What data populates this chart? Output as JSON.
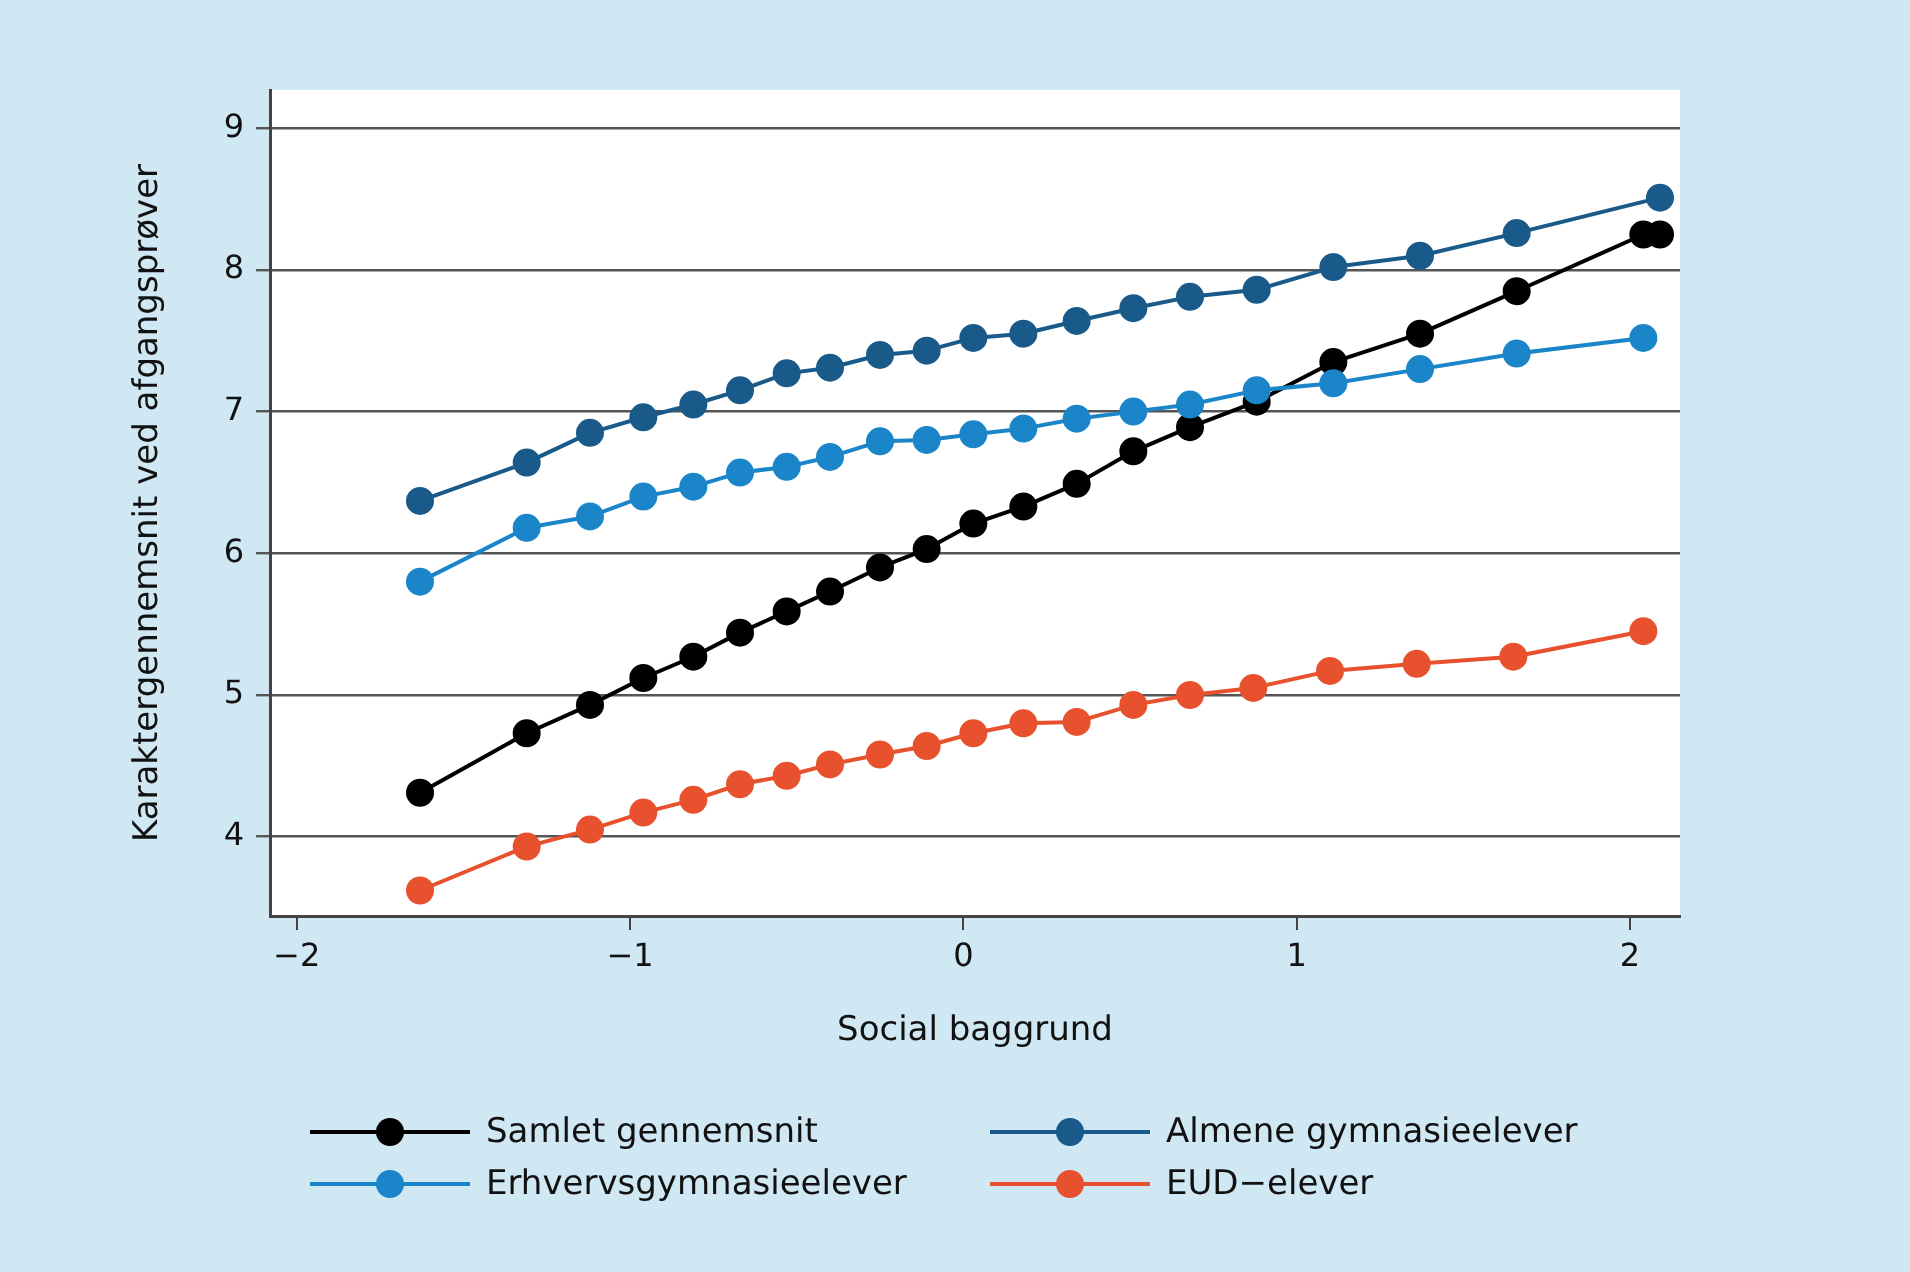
{
  "chart_data": {
    "type": "line",
    "xlabel": "Social baggrund",
    "ylabel": "Karaktergennemsnit ved afgangsprøver",
    "xlim": [
      -2.08,
      2.15
    ],
    "ylim": [
      3.44,
      9.27
    ],
    "xticks": [
      {
        "value": -2,
        "label": "−2"
      },
      {
        "value": -1,
        "label": "−1"
      },
      0,
      1,
      2
    ],
    "yticks": [
      4,
      5,
      6,
      7,
      8,
      9
    ],
    "grid": "y",
    "legend": "bottom",
    "marker": "circle",
    "line_style": "solid",
    "series": [
      {
        "name": "Samlet gennemsnit",
        "color": "#000000",
        "x": [
          -1.63,
          -1.31,
          -1.12,
          -0.96,
          -0.81,
          -0.67,
          -0.53,
          -0.4,
          -0.25,
          -0.11,
          0.03,
          0.18,
          0.34,
          0.51,
          0.68,
          0.88,
          1.11,
          1.37,
          1.66,
          2.04,
          2.09
        ],
        "values": [
          4.31,
          4.73,
          4.93,
          5.12,
          5.27,
          5.44,
          5.59,
          5.73,
          5.9,
          6.03,
          6.21,
          6.33,
          6.49,
          6.72,
          6.89,
          7.07,
          7.35,
          7.55,
          7.85,
          8.25,
          8.25
        ]
      },
      {
        "name": "Almene gymnasieelever",
        "color": "#1a5a8a",
        "x": [
          -1.63,
          -1.31,
          -1.12,
          -0.96,
          -0.81,
          -0.67,
          -0.53,
          -0.4,
          -0.25,
          -0.11,
          0.03,
          0.18,
          0.34,
          0.51,
          0.68,
          0.88,
          1.11,
          1.37,
          1.66,
          2.09
        ],
        "values": [
          6.37,
          6.64,
          6.85,
          6.96,
          7.05,
          7.15,
          7.27,
          7.31,
          7.4,
          7.43,
          7.52,
          7.55,
          7.64,
          7.73,
          7.81,
          7.86,
          8.02,
          8.1,
          8.26,
          8.51
        ]
      },
      {
        "name": "Erhvervsgymnasieelever",
        "color": "#1a85c8",
        "x": [
          -1.63,
          -1.31,
          -1.12,
          -0.96,
          -0.81,
          -0.67,
          -0.53,
          -0.4,
          -0.25,
          -0.11,
          0.03,
          0.18,
          0.34,
          0.51,
          0.68,
          0.88,
          1.11,
          1.37,
          1.66,
          2.04
        ],
        "values": [
          5.8,
          6.18,
          6.26,
          6.4,
          6.47,
          6.57,
          6.61,
          6.68,
          6.79,
          6.8,
          6.84,
          6.88,
          6.95,
          7.0,
          7.05,
          7.15,
          7.2,
          7.3,
          7.41,
          7.52
        ]
      },
      {
        "name": "EUD−elever",
        "color": "#e8512d",
        "x": [
          -1.63,
          -1.31,
          -1.12,
          -0.96,
          -0.81,
          -0.67,
          -0.53,
          -0.4,
          -0.25,
          -0.11,
          0.03,
          0.18,
          0.34,
          0.51,
          0.68,
          0.87,
          1.1,
          1.36,
          1.65,
          2.04
        ],
        "values": [
          3.62,
          3.93,
          4.05,
          4.17,
          4.26,
          4.37,
          4.43,
          4.51,
          4.58,
          4.64,
          4.73,
          4.8,
          4.81,
          4.93,
          5.0,
          5.05,
          5.17,
          5.22,
          5.27,
          5.45
        ]
      }
    ]
  }
}
